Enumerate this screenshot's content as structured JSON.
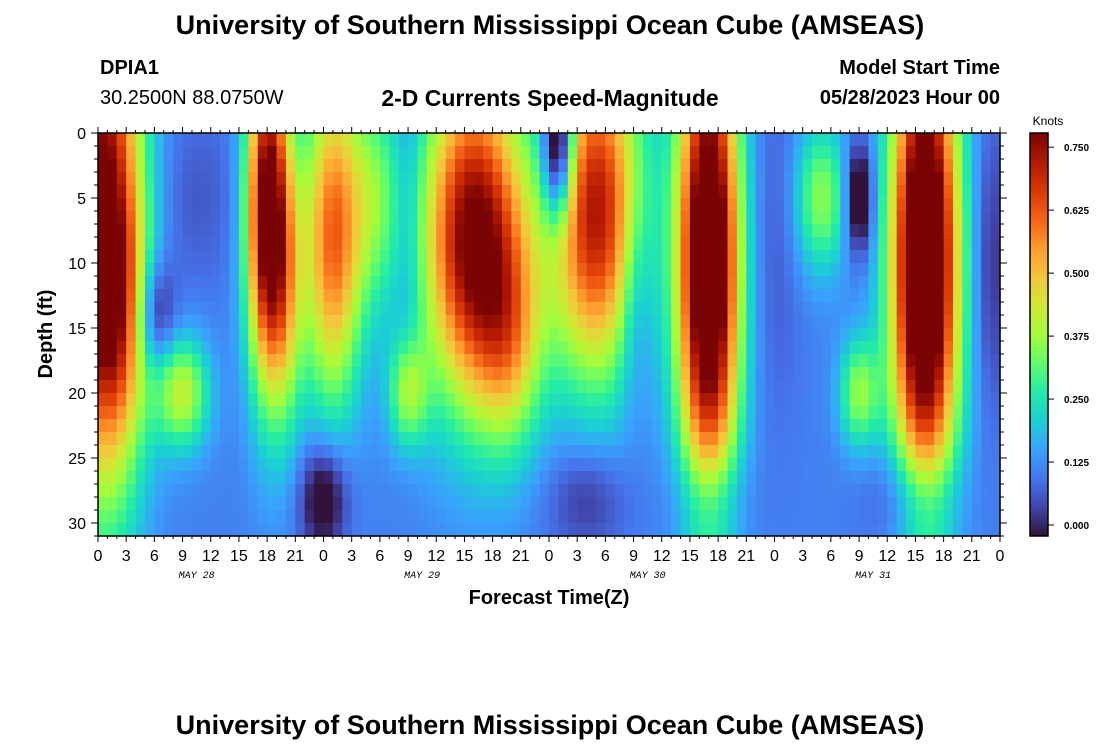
{
  "page": {
    "title_top": "University of Southern Mississippi Ocean Cube (AMSEAS)",
    "title_bottom": "University of Southern Mississippi Ocean Cube (AMSEAS)",
    "station_id": "DPIA1",
    "station_coords": "30.2500N  88.0750W",
    "model_start_label": "Model Start Time",
    "model_start_value": "05/28/2023 Hour 00"
  },
  "chart_data": {
    "type": "heatmap",
    "title": "2-D Currents Speed-Magnitude",
    "xlabel": "Forecast Time(Z)",
    "ylabel": "Depth (ft)",
    "xlim": [
      0,
      96
    ],
    "ylim": [
      31,
      0
    ],
    "x_tick_labels": [
      "0",
      "3",
      "6",
      "9",
      "12",
      "15",
      "18",
      "21",
      "0",
      "3",
      "6",
      "9",
      "12",
      "15",
      "18",
      "21",
      "0",
      "3",
      "6",
      "9",
      "12",
      "15",
      "18",
      "21",
      "0",
      "3",
      "6",
      "9",
      "12",
      "15",
      "18",
      "21",
      "0"
    ],
    "day_labels": [
      "MAY 28",
      "MAY 29",
      "MAY 30",
      "MAY 31"
    ],
    "y_ticks": [
      0,
      5,
      10,
      15,
      20,
      25,
      30
    ],
    "colorbar": {
      "label": "Knots",
      "ticks": [
        "0.750",
        "0.625",
        "0.500",
        "0.375",
        "0.250",
        "0.125",
        "0.000"
      ],
      "range": [
        0,
        0.8
      ],
      "stops": [
        "#30123b",
        "#4145ab",
        "#4675ed",
        "#39a2fc",
        "#1bcfd4",
        "#24eca6",
        "#61fc6c",
        "#a4fc3b",
        "#d1e834",
        "#f3c63a",
        "#fe9b2d",
        "#f36315",
        "#d93806",
        "#b11901",
        "#7a0403"
      ]
    },
    "grid": false,
    "legend": "right",
    "time_columns": [
      0,
      1,
      2,
      3,
      4,
      5,
      6,
      7,
      8,
      9,
      10,
      11,
      12,
      13,
      14,
      15,
      16,
      17,
      18,
      19,
      20,
      21,
      22,
      23,
      24,
      25,
      26,
      27,
      28,
      29,
      30,
      31,
      32,
      33,
      34,
      35,
      36,
      37,
      38,
      39,
      40,
      41,
      42,
      43,
      44,
      45,
      46,
      47,
      48,
      49,
      50,
      51,
      52,
      53,
      54,
      55,
      56,
      57,
      58,
      59,
      60,
      61,
      62,
      63,
      64,
      65,
      66,
      67,
      68,
      69,
      70,
      71,
      72,
      73,
      74,
      75,
      76,
      77,
      78,
      79,
      80,
      81,
      82,
      83,
      84,
      85,
      86,
      87,
      88,
      89,
      90,
      91,
      92,
      93,
      94,
      95
    ],
    "depth_rows": [
      0,
      1,
      2,
      3,
      4,
      5,
      6,
      7,
      8,
      9,
      10,
      11,
      12,
      13,
      14,
      15,
      16,
      17,
      18,
      19,
      20,
      21,
      22,
      23,
      24,
      25,
      26,
      27,
      28,
      29,
      30
    ],
    "speed_features": [
      {
        "t": 0.5,
        "d": 6,
        "st": 3.0,
        "sd": 15,
        "v": 0.68
      },
      {
        "t": 2,
        "d": 14,
        "st": 2.5,
        "sd": 7,
        "v": 0.22
      },
      {
        "t": 6,
        "d": 14,
        "st": 1.5,
        "sd": 3,
        "v": -0.2
      },
      {
        "t": 9,
        "d": 20,
        "st": 2.0,
        "sd": 3,
        "v": 0.3
      },
      {
        "t": 10,
        "d": 5,
        "st": 4,
        "sd": 5,
        "v": -0.05
      },
      {
        "t": 18,
        "d": 6,
        "st": 1.6,
        "sd": 9,
        "v": 0.72
      },
      {
        "t": 20,
        "d": 12,
        "st": 1.5,
        "sd": 8,
        "v": 0.25
      },
      {
        "t": 25,
        "d": 8,
        "st": 2.2,
        "sd": 9,
        "v": 0.5
      },
      {
        "t": 24,
        "d": 28,
        "st": 1.8,
        "sd": 3,
        "v": -0.2
      },
      {
        "t": 29.5,
        "d": 5,
        "st": 2,
        "sd": 6,
        "v": 0.2
      },
      {
        "t": 33,
        "d": 6,
        "st": 1.0,
        "sd": 10,
        "v": -0.05
      },
      {
        "t": 33,
        "d": 20,
        "st": 1.5,
        "sd": 3,
        "v": 0.25
      },
      {
        "t": 40,
        "d": 8,
        "st": 3.8,
        "sd": 9,
        "v": 0.7
      },
      {
        "t": 44,
        "d": 16,
        "st": 2.5,
        "sd": 6,
        "v": 0.25
      },
      {
        "t": 49,
        "d": 1,
        "st": 1.2,
        "sd": 4,
        "v": -0.45
      },
      {
        "t": 53,
        "d": 6,
        "st": 3.5,
        "sd": 9,
        "v": 0.62
      },
      {
        "t": 52,
        "d": 28,
        "st": 3,
        "sd": 3,
        "v": -0.1
      },
      {
        "t": 57,
        "d": 12,
        "st": 1.2,
        "sd": 6,
        "v": -0.1
      },
      {
        "t": 65,
        "d": 10,
        "st": 2.3,
        "sd": 13,
        "v": 0.88
      },
      {
        "t": 65,
        "d": 28,
        "st": 2.5,
        "sd": 3,
        "v": -0.12
      },
      {
        "t": 72,
        "d": 8,
        "st": 2.0,
        "sd": 10,
        "v": -0.05
      },
      {
        "t": 77,
        "d": 5,
        "st": 2,
        "sd": 4,
        "v": 0.25
      },
      {
        "t": 81,
        "d": 5,
        "st": 1.0,
        "sd": 3,
        "v": -0.25
      },
      {
        "t": 81,
        "d": 20,
        "st": 1.5,
        "sd": 3,
        "v": 0.25
      },
      {
        "t": 88,
        "d": 10,
        "st": 2.5,
        "sd": 13,
        "v": 0.92
      },
      {
        "t": 87,
        "d": 28,
        "st": 3,
        "sd": 3,
        "v": -0.15
      },
      {
        "t": 95,
        "d": 10,
        "st": 1.2,
        "sd": 8,
        "v": -0.1
      }
    ]
  }
}
